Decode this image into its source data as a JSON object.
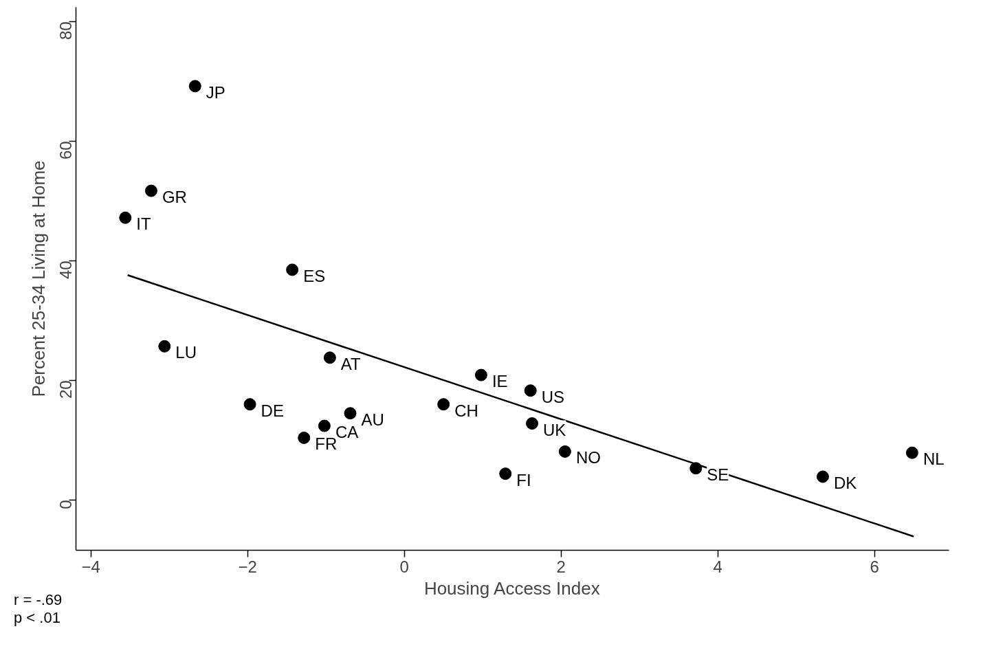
{
  "chart_data": {
    "type": "scatter",
    "xlabel": "Housing Access Index",
    "ylabel": "Percent 25-34 Living at Home",
    "xlim": [
      -4.19,
      6.95
    ],
    "ylim": [
      -8.4,
      82.4
    ],
    "xticks": [
      -4,
      -2,
      0,
      2,
      4,
      6
    ],
    "yticks": [
      0,
      20,
      40,
      60,
      80
    ],
    "grid": false,
    "legend": false,
    "marker": "circle",
    "series": [
      {
        "type": "scatter",
        "color": "#000000",
        "x": [
          -2.67,
          -3.23,
          -3.56,
          -1.43,
          -3.06,
          -0.95,
          0.98,
          1.61,
          -1.97,
          0.5,
          -0.69,
          -1.02,
          1.63,
          -1.28,
          2.05,
          1.29,
          3.72,
          5.34,
          6.48
        ],
        "values": [
          69.2,
          51.7,
          47.2,
          38.5,
          25.7,
          23.8,
          20.9,
          18.3,
          16.0,
          16.0,
          14.5,
          12.4,
          12.8,
          10.4,
          8.1,
          4.4,
          5.3,
          3.9,
          7.9
        ]
      },
      {
        "type": "line",
        "color": "#000000",
        "marker": "none",
        "x": [
          -3.53,
          6.5
        ],
        "values": [
          37.6,
          -6.1
        ]
      }
    ],
    "annotations": [
      {
        "text": "JP",
        "x": -2.67,
        "y": 69.2
      },
      {
        "text": "GR",
        "x": -3.23,
        "y": 51.7
      },
      {
        "text": "IT",
        "x": -3.56,
        "y": 47.2
      },
      {
        "text": "ES",
        "x": -1.43,
        "y": 38.5
      },
      {
        "text": "LU",
        "x": -3.06,
        "y": 25.7
      },
      {
        "text": "AT",
        "x": -0.95,
        "y": 23.8
      },
      {
        "text": "IE",
        "x": 0.98,
        "y": 20.9
      },
      {
        "text": "US",
        "x": 1.61,
        "y": 18.3
      },
      {
        "text": "DE",
        "x": -1.97,
        "y": 16.0
      },
      {
        "text": "CH",
        "x": 0.5,
        "y": 16.0
      },
      {
        "text": "AU",
        "x": -0.69,
        "y": 14.5
      },
      {
        "text": "CA",
        "x": -1.02,
        "y": 12.4
      },
      {
        "text": "UK",
        "x": 1.63,
        "y": 12.8
      },
      {
        "text": "FR",
        "x": -1.28,
        "y": 10.4
      },
      {
        "text": "NO",
        "x": 2.05,
        "y": 8.1
      },
      {
        "text": "FI",
        "x": 1.29,
        "y": 4.4
      },
      {
        "text": "SE",
        "x": 3.72,
        "y": 5.3
      },
      {
        "text": "DK",
        "x": 5.34,
        "y": 3.9
      },
      {
        "text": "NL",
        "x": 6.48,
        "y": 7.9
      },
      "r = -.69",
      "p < .01"
    ]
  }
}
